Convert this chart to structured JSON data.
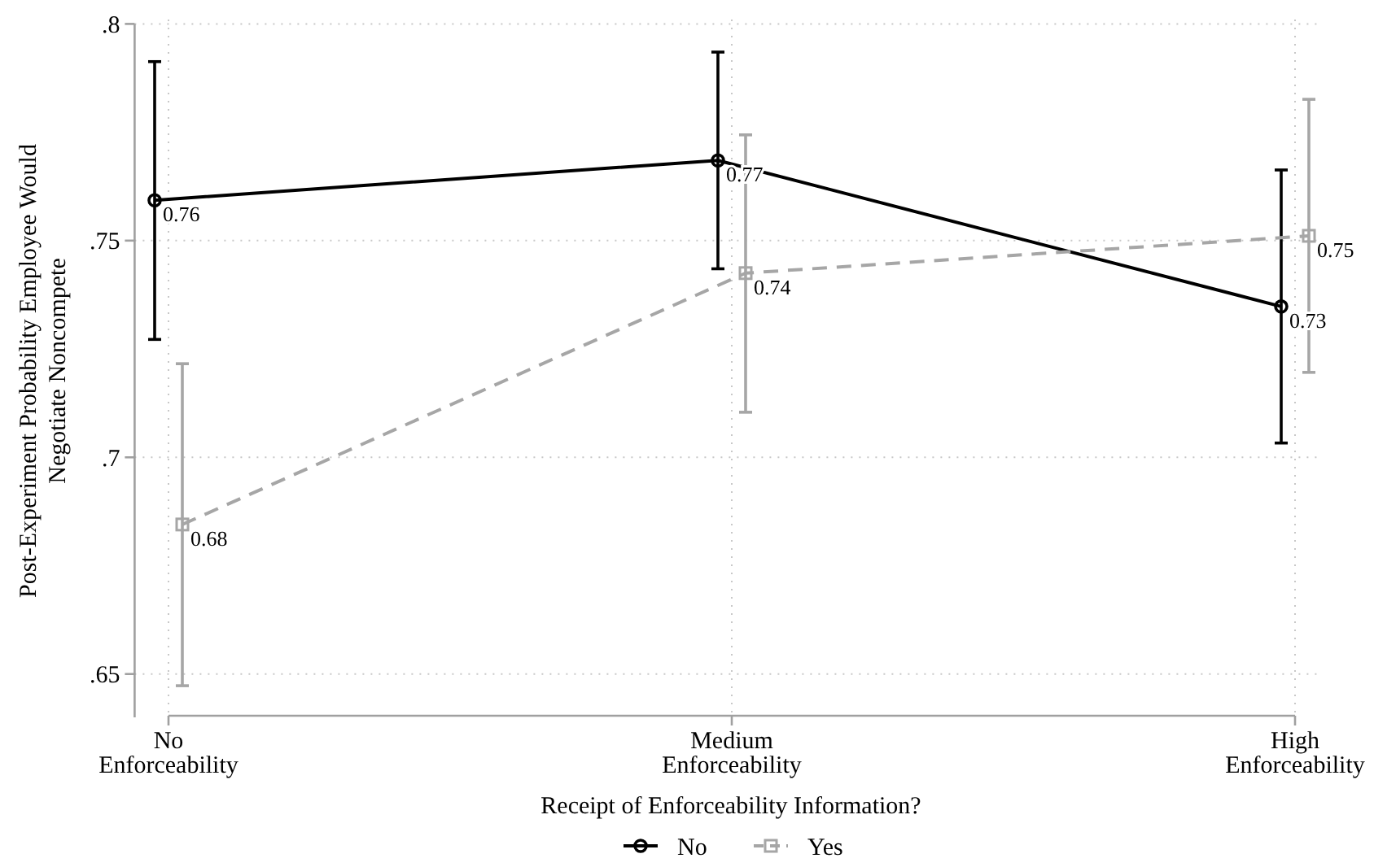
{
  "chart_data": {
    "type": "line",
    "ylabel": "Post-Experiment Probability Employee Would\nNegotiate Noncompete",
    "legend_title": "Receipt of Enforceability Information?",
    "categories": [
      "No\nEnforceability",
      "Medium\nEnforceability",
      "High\nEnforceability"
    ],
    "series": [
      {
        "name": "No",
        "color": "#000000",
        "marker": "circle",
        "line_style": "solid",
        "values": [
          0.7593,
          0.7685,
          0.7348
        ],
        "errors": [
          [
            0.7272,
            0.7913
          ],
          [
            0.7435,
            0.7935
          ],
          [
            0.7033,
            0.7663
          ]
        ],
        "value_labels": [
          "0.76",
          "0.77",
          "0.73"
        ]
      },
      {
        "name": "Yes",
        "color": "#a6a6a6",
        "marker": "square",
        "line_style": "dashed",
        "values": [
          0.6845,
          0.7425,
          0.7511
        ],
        "errors": [
          [
            0.6473,
            0.7216
          ],
          [
            0.7104,
            0.7744
          ],
          [
            0.7196,
            0.7826
          ]
        ],
        "value_labels": [
          "0.68",
          "0.74",
          "0.75"
        ]
      }
    ],
    "ylim": [
      0.64,
      0.8
    ],
    "yticks": [
      {
        "value": 0.65,
        "label": ".65"
      },
      {
        "value": 0.7,
        "label": ".7"
      },
      {
        "value": 0.75,
        "label": ".75"
      },
      {
        "value": 0.8,
        "label": ".8"
      }
    ],
    "grid": true,
    "legend": "bottom"
  }
}
